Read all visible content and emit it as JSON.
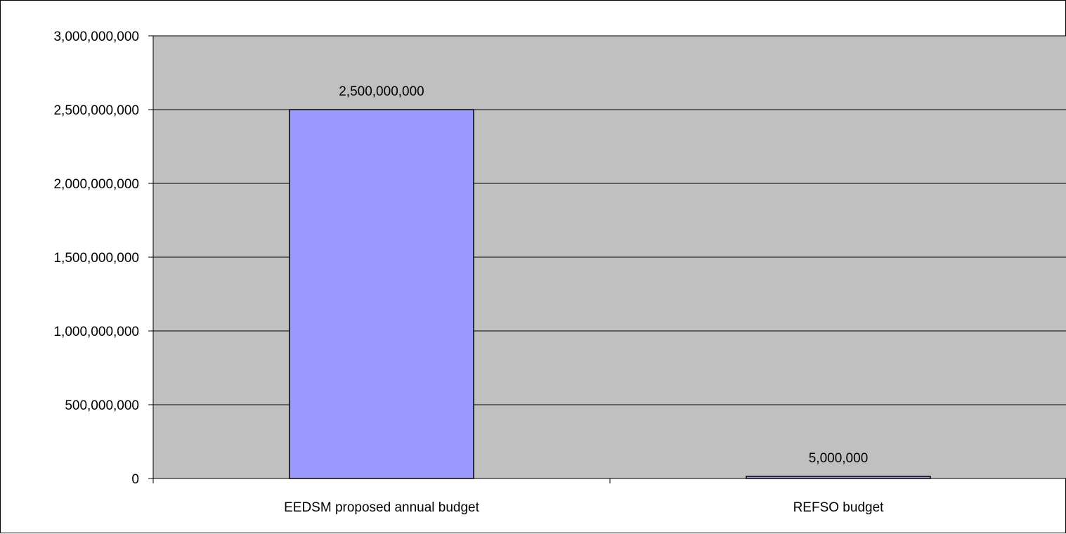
{
  "colors": {
    "plot_background": "#C0C0C0",
    "bar_fill": "#9999FF",
    "bar_stroke": "#000000",
    "gridline": "#000000",
    "frame": "#000000"
  },
  "chart_data": {
    "type": "bar",
    "categories": [
      "EEDSM proposed annual budget",
      "REFSO budget"
    ],
    "values": [
      2500000000,
      5000000
    ],
    "data_labels": [
      "2,500,000,000",
      "5,000,000"
    ],
    "title": "",
    "xlabel": "",
    "ylabel": "",
    "ylim": [
      0,
      3000000000
    ],
    "yticks": [
      0,
      500000000,
      1000000000,
      1500000000,
      2000000000,
      2500000000,
      3000000000
    ],
    "ytick_labels": [
      "0",
      "500,000,000",
      "1,000,000,000",
      "1,500,000,000",
      "2,000,000,000",
      "2,500,000,000",
      "3,000,000,000"
    ],
    "grid": true,
    "legend": "none"
  }
}
